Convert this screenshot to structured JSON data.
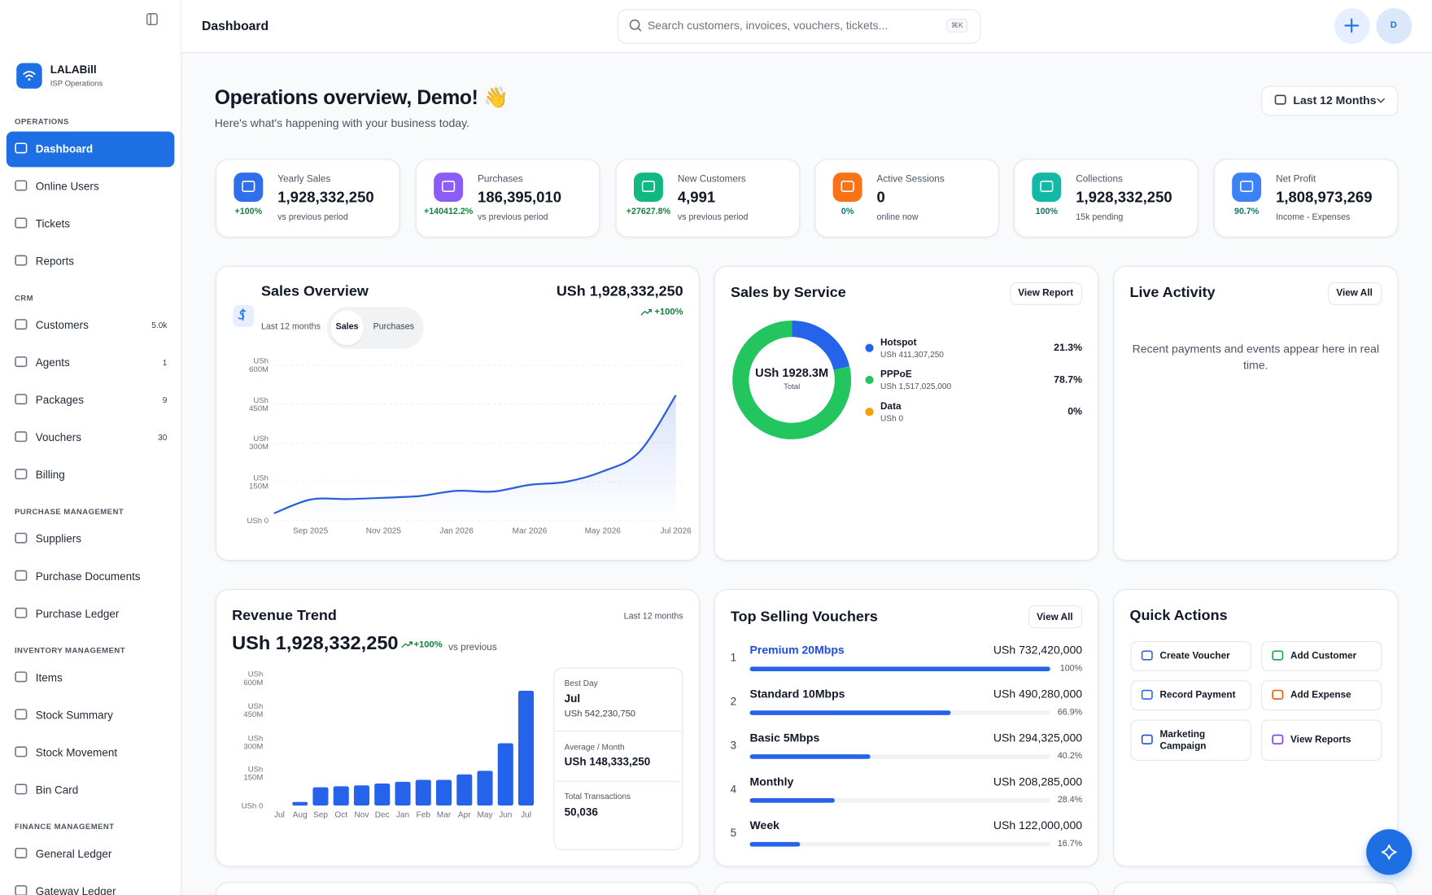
{
  "sidebar": {
    "brand": "LALABill",
    "tagline": "ISP Operations",
    "sections": [
      {
        "title": "OPERATIONS",
        "items": [
          {
            "label": "Dashboard",
            "active": true
          },
          {
            "label": "Online Users"
          },
          {
            "label": "Tickets"
          },
          {
            "label": "Reports"
          }
        ]
      },
      {
        "title": "CRM",
        "items": [
          {
            "label": "Customers",
            "badge": "5.0k"
          },
          {
            "label": "Agents",
            "badge": "1"
          },
          {
            "label": "Packages",
            "badge": "9"
          },
          {
            "label": "Vouchers",
            "badge": "30"
          },
          {
            "label": "Billing"
          }
        ]
      },
      {
        "title": "PURCHASE MANAGEMENT",
        "items": [
          {
            "label": "Suppliers"
          },
          {
            "label": "Purchase Documents"
          },
          {
            "label": "Purchase Ledger"
          }
        ]
      },
      {
        "title": "INVENTORY MANAGEMENT",
        "items": [
          {
            "label": "Items"
          },
          {
            "label": "Stock Summary"
          },
          {
            "label": "Stock Movement"
          },
          {
            "label": "Bin Card"
          }
        ]
      },
      {
        "title": "FINANCE MANAGEMENT",
        "items": [
          {
            "label": "General Ledger"
          },
          {
            "label": "Gateway Ledger"
          }
        ]
      }
    ]
  },
  "header": {
    "title": "Dashboard",
    "search": "Search customers, invoices, vouchers, tickets...",
    "shortcut": "⌘K",
    "avatar": "D"
  },
  "overview": {
    "title": "Operations overview, Demo! 👋",
    "subtitle": "Here's what's happening with your business today.",
    "range": "Last 12 Months"
  },
  "kpis": [
    {
      "label": "Yearly Sales",
      "value": "1,928,332,250",
      "change": "+100%",
      "note": "vs previous period",
      "color": "#2f6fec"
    },
    {
      "label": "Purchases",
      "value": "186,395,010",
      "change": "+140412.2%",
      "note": "vs previous period",
      "color": "#8b5cf6"
    },
    {
      "label": "New Customers",
      "value": "4,991",
      "change": "+27627.8%",
      "note": "vs previous period",
      "color": "#10b981"
    },
    {
      "label": "Active Sessions",
      "value": "0",
      "change": "0%",
      "note": "online now",
      "color": "#f97316"
    },
    {
      "label": "Collections",
      "value": "1,928,332,250",
      "change": "100%",
      "note": "15k pending",
      "color": "#14b8a6"
    },
    {
      "label": "Net Profit",
      "value": "1,808,973,269",
      "change": "90.7%",
      "note": "Income - Expenses",
      "color": "#3b82f6"
    }
  ],
  "sales_overview": {
    "title": "Sales Overview",
    "period": "Last 12 months",
    "tabs": [
      "Sales",
      "Purchases"
    ],
    "total": "USh 1,928,332,250",
    "change": "+100%",
    "chart": {
      "type": "line",
      "color": "#2b5fd9",
      "grid": true,
      "categories": [
        null,
        "Sep 2025",
        null,
        "Nov 2025",
        null,
        "Jan 2026",
        null,
        "Mar 2026",
        null,
        "May 2026",
        null,
        "Jul 2026"
      ],
      "values": [
        28000000,
        81000000,
        83000000,
        88000000,
        95000000,
        115000000,
        112000000,
        138000000,
        150000000,
        190000000,
        265000000,
        484000000
      ],
      "ylim": [
        0,
        600000000
      ],
      "yticks": [
        {
          "value": 0,
          "label": "USh 0"
        },
        {
          "value": 150000000,
          "label": "USh 150M"
        },
        {
          "value": 300000000,
          "label": "USh 300M"
        },
        {
          "value": 450000000,
          "label": "USh 450M"
        },
        {
          "value": 600000000,
          "label": "USh 600M"
        }
      ]
    }
  },
  "sales_by_service": {
    "title": "Sales by Service",
    "button": "View Report",
    "chart": {
      "type": "donut",
      "center_value": "USh 1928.3M",
      "center_label": "Total",
      "categories": [
        "Hotspot",
        "PPPoE",
        "Data"
      ],
      "amounts": [
        "USh 411,307,250",
        "USh 1,517,025,000",
        "USh 0"
      ],
      "values": [
        21.3,
        78.7,
        0
      ],
      "value_labels": [
        "21.3%",
        "78.7%",
        "0%"
      ],
      "colors": [
        "#2563eb",
        "#22c55e",
        "#f59e0b"
      ]
    }
  },
  "live_activity": {
    "title": "Live Activity",
    "button": "View All",
    "empty": "Recent payments and events appear here in real time."
  },
  "revenue_trend": {
    "title": "Revenue Trend",
    "period": "Last 12 months",
    "total": "USh 1,928,332,250",
    "change": "+100%",
    "compare": "vs previous",
    "chart": {
      "type": "bar",
      "color": "#2563eb",
      "categories": [
        "Jul",
        "Aug",
        "Sep",
        "Oct",
        "Nov",
        "Dec",
        "Jan",
        "Feb",
        "Mar",
        "Apr",
        "May",
        "Jun",
        "Jul"
      ],
      "values": [
        0,
        17000000,
        86000000,
        91000000,
        95000000,
        104000000,
        112000000,
        121000000,
        121000000,
        147000000,
        164000000,
        294000000,
        542000000
      ],
      "ylim": [
        0,
        600000000
      ],
      "yticks": [
        {
          "value": 0,
          "label": "USh 0"
        },
        {
          "value": 150000000,
          "label": "USh 150M"
        },
        {
          "value": 300000000,
          "label": "USh 300M"
        },
        {
          "value": 450000000,
          "label": "USh 450M"
        },
        {
          "value": 600000000,
          "label": "USh 600M"
        }
      ]
    },
    "stats": [
      {
        "label": "Best Day",
        "value": "Jul",
        "detail": "USh 542,230,750"
      },
      {
        "label": "Average / Month",
        "value": "USh 148,333,250"
      },
      {
        "label": "Total Transactions",
        "value": "50,036"
      }
    ]
  },
  "top_vouchers": {
    "title": "Top Selling Vouchers",
    "button": "View All",
    "color": "#2563eb",
    "items": [
      {
        "rank": "1",
        "name": "Premium 20Mbps",
        "amount": "USh 732,420,000",
        "share": 100,
        "share_label": "100%"
      },
      {
        "rank": "2",
        "name": "Standard 10Mbps",
        "amount": "USh 490,280,000",
        "share": 66.9,
        "share_label": "66.9%"
      },
      {
        "rank": "3",
        "name": "Basic 5Mbps",
        "amount": "USh 294,325,000",
        "share": 40.2,
        "share_label": "40.2%"
      },
      {
        "rank": "4",
        "name": "Monthly",
        "amount": "USh 208,285,000",
        "share": 28.4,
        "share_label": "28.4%"
      },
      {
        "rank": "5",
        "name": "Week",
        "amount": "USh 122,000,000",
        "share": 16.7,
        "share_label": "16.7%"
      }
    ]
  },
  "quick_actions": {
    "title": "Quick Actions",
    "actions": [
      {
        "label": "Create Voucher",
        "color": "#2563eb"
      },
      {
        "label": "Add Customer",
        "color": "#16a34a"
      },
      {
        "label": "Record Payment",
        "color": "#2563eb"
      },
      {
        "label": "Add Expense",
        "color": "#ea580c"
      },
      {
        "label": "Marketing Campaign",
        "color": "#1d4ed8"
      },
      {
        "label": "View Reports",
        "color": "#7c3aed"
      }
    ]
  }
}
